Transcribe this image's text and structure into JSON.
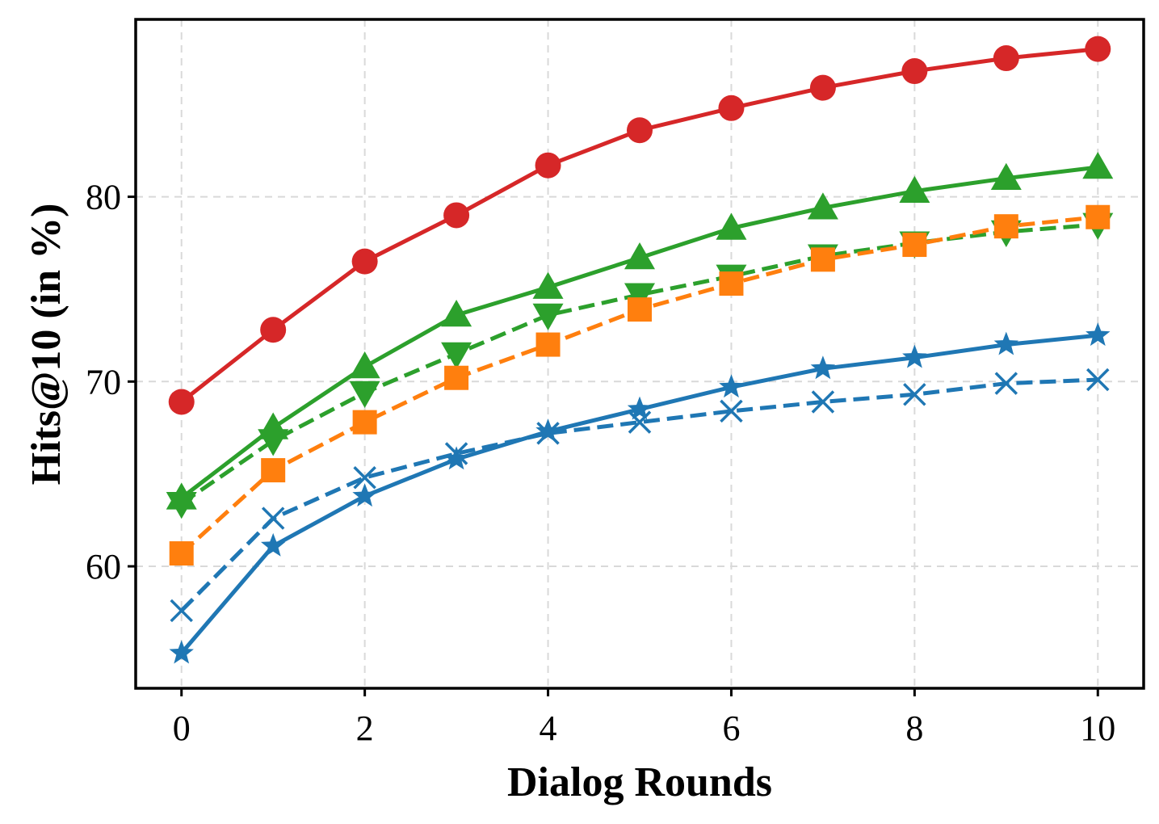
{
  "chart_data": {
    "type": "line",
    "xlabel": "Dialog Rounds",
    "ylabel": "Hits@10 (in %)",
    "xlim": [
      -0.5,
      10.5
    ],
    "ylim": [
      53.4,
      89.6
    ],
    "xticks": [
      "0",
      "2",
      "4",
      "6",
      "8",
      "10"
    ],
    "yticks": [
      "60",
      "70",
      "80"
    ],
    "grid": true,
    "x": [
      0,
      1,
      2,
      3,
      4,
      5,
      6,
      7,
      8,
      9,
      10
    ],
    "series": [
      {
        "color": "#d62728",
        "linestyle": "solid",
        "marker": "circle",
        "values": [
          68.9,
          72.8,
          76.5,
          79.0,
          81.7,
          83.6,
          84.8,
          85.9,
          86.8,
          87.5,
          88.0
        ]
      },
      {
        "color": "#2ca02c",
        "linestyle": "solid",
        "marker": "triangle-up",
        "values": [
          63.7,
          67.5,
          70.8,
          73.6,
          75.1,
          76.7,
          78.3,
          79.4,
          80.3,
          81.0,
          81.6
        ]
      },
      {
        "color": "#2ca02c",
        "linestyle": "dashed",
        "marker": "triangle-down",
        "values": [
          63.4,
          66.8,
          69.4,
          71.5,
          73.6,
          74.7,
          75.7,
          76.8,
          77.5,
          78.1,
          78.5
        ]
      },
      {
        "color": "#ff7f0e",
        "linestyle": "dashed",
        "marker": "square",
        "values": [
          60.7,
          65.2,
          67.8,
          70.2,
          72.0,
          73.9,
          75.3,
          76.6,
          77.4,
          78.4,
          78.9
        ]
      },
      {
        "color": "#1f77b4",
        "linestyle": "solid",
        "marker": "star",
        "values": [
          55.3,
          61.1,
          63.8,
          65.8,
          67.3,
          68.5,
          69.7,
          70.7,
          71.3,
          72.0,
          72.5
        ]
      },
      {
        "color": "#1f77b4",
        "linestyle": "dashed",
        "marker": "x",
        "values": [
          57.6,
          62.6,
          64.8,
          66.1,
          67.2,
          67.8,
          68.4,
          68.9,
          69.3,
          69.9,
          70.1
        ]
      }
    ]
  }
}
